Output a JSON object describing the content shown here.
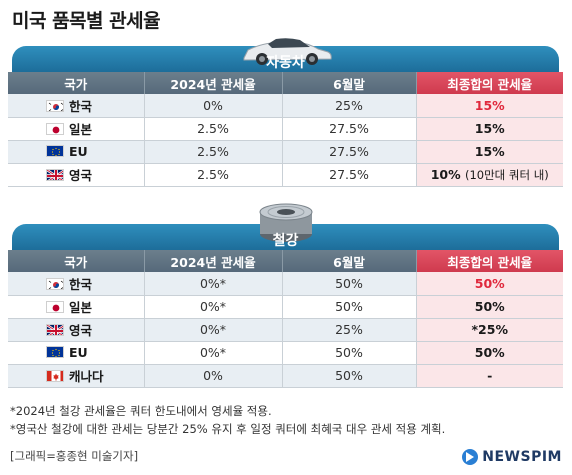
{
  "title": "미국 품목별 관세율",
  "headers": [
    "국가",
    "2024년 관세율",
    "6월말",
    "최종합의 관세율"
  ],
  "car": {
    "label": "자동차",
    "rows": [
      {
        "country": "한국",
        "flag": "korea-flag-icon",
        "rate2024": "0%",
        "june": "25%",
        "final": "15%",
        "final_note": "",
        "final_red": true
      },
      {
        "country": "일본",
        "flag": "japan-flag-icon",
        "rate2024": "2.5%",
        "june": "27.5%",
        "final": "15%",
        "final_note": "",
        "final_red": false
      },
      {
        "country": "EU",
        "flag": "eu-flag-icon",
        "rate2024": "2.5%",
        "june": "27.5%",
        "final": "15%",
        "final_note": "",
        "final_red": false
      },
      {
        "country": "영국",
        "flag": "uk-flag-icon",
        "rate2024": "2.5%",
        "june": "27.5%",
        "final": "10%",
        "final_note": "(10만대 쿼터 내)",
        "final_red": false
      }
    ]
  },
  "steel": {
    "label": "철강",
    "rows": [
      {
        "country": "한국",
        "flag": "korea-flag-icon",
        "rate2024": "0%*",
        "june": "50%",
        "final": "50%",
        "final_red": true
      },
      {
        "country": "일본",
        "flag": "japan-flag-icon",
        "rate2024": "0%*",
        "june": "50%",
        "final": "50%",
        "final_red": false
      },
      {
        "country": "영국",
        "flag": "uk-flag-icon",
        "rate2024": "0%*",
        "june": "25%",
        "final": "*25%",
        "final_red": false
      },
      {
        "country": "EU",
        "flag": "eu-flag-icon",
        "rate2024": "0%*",
        "june": "50%",
        "final": "50%",
        "final_red": false
      },
      {
        "country": "캐나다",
        "flag": "canada-flag-icon",
        "rate2024": "0%",
        "june": "50%",
        "final": "-",
        "final_red": false
      }
    ]
  },
  "notes": [
    "*2024년 철강 관세율은 쿼터 한도내에서 영세율 적용.",
    "*영국산 철강에 대한 관세는 당분간 25% 유지 후 일정 쿼터에 최혜국 대우 관세 적용 계획."
  ],
  "credit": "[그래픽=홍종현 미술기자]",
  "brand": "NEWSPIM",
  "colors": {
    "banner": "#2a82b2",
    "header": "#62778a",
    "highlight": "#d8404f",
    "final_bg": "#fbe6e8",
    "red_text": "#e0283c"
  }
}
